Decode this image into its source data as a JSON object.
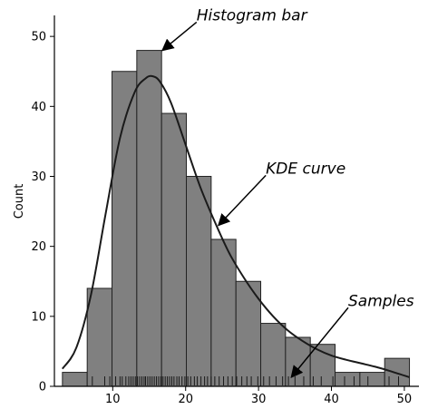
{
  "chart_data": {
    "type": "bar",
    "title": "",
    "xlabel": "",
    "ylabel": "Count",
    "xlim": [
      2,
      52
    ],
    "ylim": [
      0,
      53
    ],
    "xticks": [
      10,
      20,
      30,
      40,
      50
    ],
    "yticks": [
      0,
      10,
      20,
      30,
      40,
      50
    ],
    "bin_edges": [
      3.1,
      6.5,
      9.9,
      13.3,
      16.7,
      20.1,
      23.5,
      26.9,
      30.3,
      33.7,
      37.1,
      40.5,
      43.9,
      47.3,
      50.7
    ],
    "counts": [
      2,
      14,
      45,
      48,
      39,
      30,
      21,
      15,
      9,
      7,
      6,
      2,
      2,
      4
    ],
    "kde": {
      "x": [
        3.1,
        5,
        7,
        9,
        11,
        13,
        14.5,
        15.5,
        16.5,
        18,
        20,
        22,
        24,
        26,
        28,
        30,
        32,
        34,
        36,
        38,
        40,
        42,
        44,
        46,
        48,
        50.7
      ],
      "y": [
        2.5,
        5.5,
        13,
        24.5,
        35.5,
        42,
        44,
        44.3,
        43.5,
        40.5,
        34.5,
        28.5,
        23.5,
        19,
        15.5,
        12.5,
        10,
        8,
        6.5,
        5.3,
        4.4,
        3.8,
        3.3,
        2.8,
        2.2,
        1.3
      ]
    },
    "rug": [
      7.2,
      8.9,
      9.6,
      10.4,
      11.0,
      11.3,
      11.8,
      12.2,
      12.5,
      12.8,
      13.1,
      13.4,
      13.7,
      14.0,
      14.3,
      14.5,
      14.8,
      15.1,
      15.4,
      15.7,
      16.0,
      16.3,
      16.6,
      16.9,
      17.2,
      17.5,
      17.8,
      18.1,
      18.4,
      18.8,
      19.1,
      19.5,
      19.9,
      20.3,
      20.7,
      21.2,
      21.6,
      22.1,
      22.6,
      23.0,
      23.5,
      24.0,
      24.6,
      25.2,
      25.8,
      26.4,
      27.0,
      27.7,
      28.4,
      29.0,
      29.9,
      30.7,
      31.5,
      32.4,
      33.3,
      34.1,
      35.0,
      36.2,
      37.5,
      38.6,
      40.2,
      41.8,
      43.1,
      45.0,
      47.9,
      49.2
    ],
    "annotations": [
      {
        "text": "Histogram bar",
        "target": {
          "x": 16.8,
          "y": 48
        },
        "anchor": {
          "x": 21.5,
          "y": 52.3
        }
      },
      {
        "text": "KDE curve",
        "target": {
          "x": 24.5,
          "y": 23
        },
        "anchor": {
          "x": 31,
          "y": 30.4
        }
      },
      {
        "text": "Samples",
        "target": {
          "x": 34.5,
          "y": 1.3
        },
        "anchor": {
          "x": 42.3,
          "y": 11.5
        }
      }
    ],
    "colors": {
      "bar_fill": "#808080",
      "bar_edge": "#222222",
      "line": "#1a1a1a"
    }
  }
}
